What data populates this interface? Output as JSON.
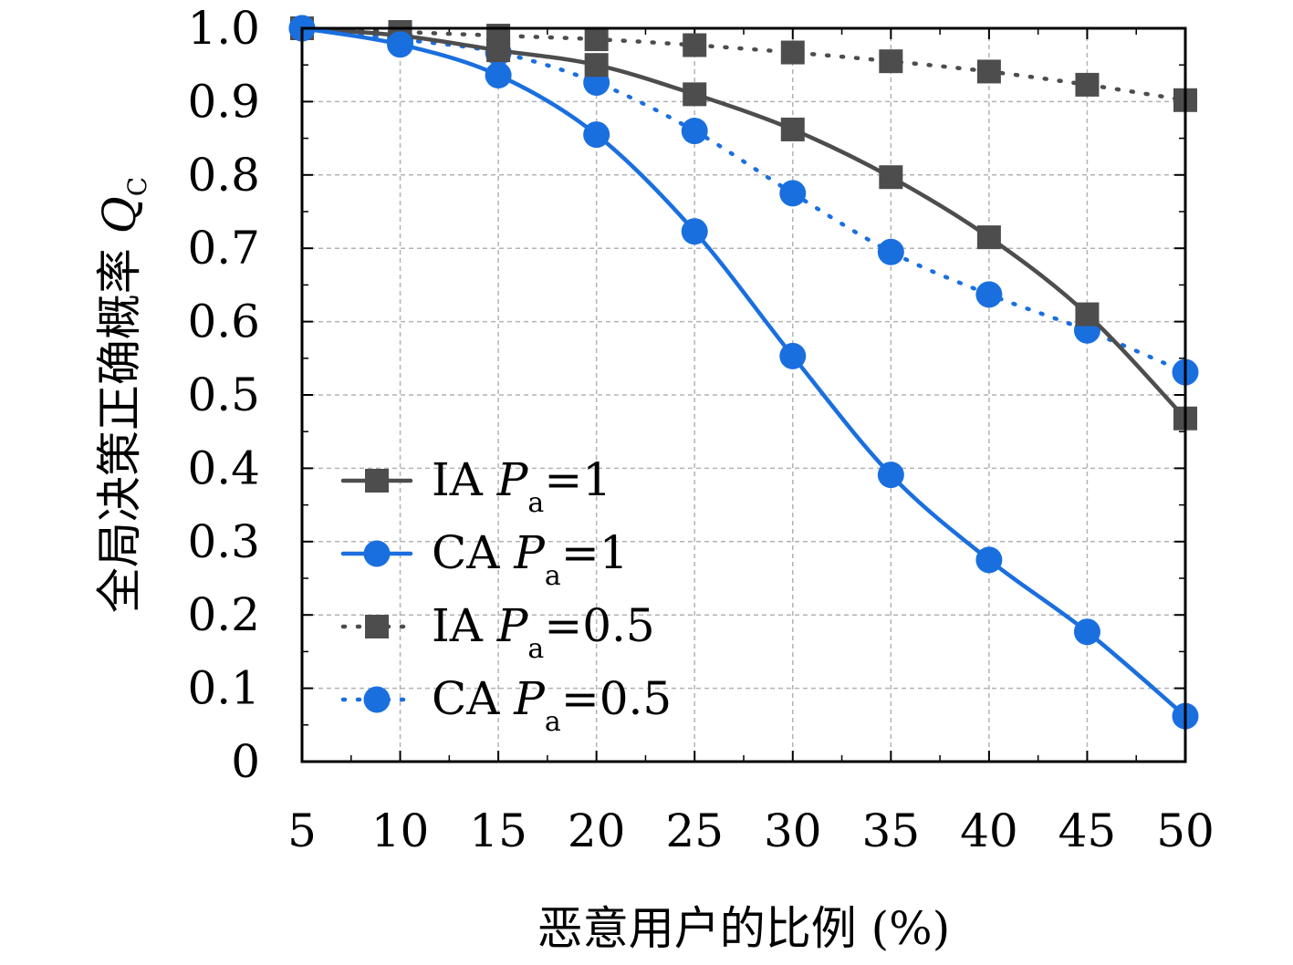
{
  "chart_data": {
    "type": "line",
    "x": [
      5,
      10,
      15,
      20,
      25,
      30,
      35,
      40,
      45,
      50
    ],
    "xticks": [
      "5",
      "10",
      "15",
      "20",
      "25",
      "30",
      "35",
      "40",
      "45",
      "50"
    ],
    "yticks": [
      "0",
      "0.1",
      "0.2",
      "0.3",
      "0.4",
      "0.5",
      "0.6",
      "0.7",
      "0.8",
      "0.9",
      "1.0"
    ],
    "xlim": [
      5,
      50
    ],
    "ylim": [
      0,
      1.0
    ],
    "xlabel": "恶意用户的比例 (%)",
    "ylabel_main": "全局决策正确概率 ",
    "ylabel_symbol": "Q",
    "ylabel_sub": "C",
    "grid": true,
    "legend_position": "lower-left",
    "series": [
      {
        "name": "IA Pa=1",
        "legend_prefix": "IA ",
        "legend_var": "P",
        "legend_sub": "a",
        "legend_suffix": "=1",
        "color": "#4d4d4d",
        "marker": "square",
        "line": "solid",
        "values": [
          1.0,
          0.99,
          0.97,
          0.95,
          0.91,
          0.862,
          0.797,
          0.715,
          0.61,
          0.468
        ]
      },
      {
        "name": "CA Pa=1",
        "legend_prefix": "CA ",
        "legend_var": "P",
        "legend_sub": "a",
        "legend_suffix": "=1",
        "color": "#1a6fdf",
        "marker": "circle",
        "line": "solid",
        "values": [
          1.0,
          0.978,
          0.936,
          0.855,
          0.723,
          0.553,
          0.391,
          0.275,
          0.177,
          0.062
        ]
      },
      {
        "name": "IA Pa=0.5",
        "legend_prefix": "IA ",
        "legend_var": "P",
        "legend_sub": "a",
        "legend_suffix": "=0.5",
        "color": "#4d4d4d",
        "marker": "square",
        "line": "dotted",
        "values": [
          1.0,
          0.995,
          0.99,
          0.985,
          0.977,
          0.967,
          0.955,
          0.941,
          0.923,
          0.902
        ]
      },
      {
        "name": "CA Pa=0.5",
        "legend_prefix": "CA ",
        "legend_var": "P",
        "legend_sub": "a",
        "legend_suffix": "=0.5",
        "color": "#1a6fdf",
        "marker": "circle",
        "line": "dotted",
        "values": [
          1.0,
          0.985,
          0.967,
          0.926,
          0.86,
          0.775,
          0.695,
          0.637,
          0.588,
          0.531
        ]
      }
    ]
  }
}
